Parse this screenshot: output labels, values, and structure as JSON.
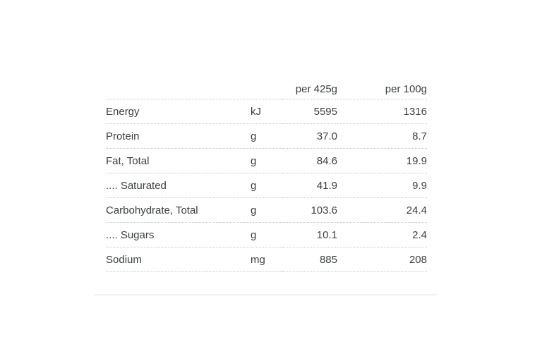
{
  "page": {
    "background_color": "#ffffff",
    "text_color": "#3b3e42",
    "row_divider_color": "#c6c6c6",
    "bottom_rule_color": "#f1f1f1"
  },
  "table": {
    "header": {
      "per_serving_label": "per 425g",
      "per_100g_label": "per 100g"
    },
    "rows": [
      {
        "nutrient": "Energy",
        "unit": "kJ",
        "per_serving": "5595",
        "per_100g": "1316"
      },
      {
        "nutrient": "Protein",
        "unit": "g",
        "per_serving": "37.0",
        "per_100g": "8.7"
      },
      {
        "nutrient": "Fat, Total",
        "unit": "g",
        "per_serving": "84.6",
        "per_100g": "19.9"
      },
      {
        "nutrient": ".... Saturated",
        "unit": "g",
        "per_serving": "41.9",
        "per_100g": "9.9"
      },
      {
        "nutrient": "Carbohydrate, Total",
        "unit": "g",
        "per_serving": "103.6",
        "per_100g": "24.4"
      },
      {
        "nutrient": ".... Sugars",
        "unit": "g",
        "per_serving": "10.1",
        "per_100g": "2.4"
      },
      {
        "nutrient": "Sodium",
        "unit": "mg",
        "per_serving": "885",
        "per_100g": "208"
      }
    ]
  }
}
